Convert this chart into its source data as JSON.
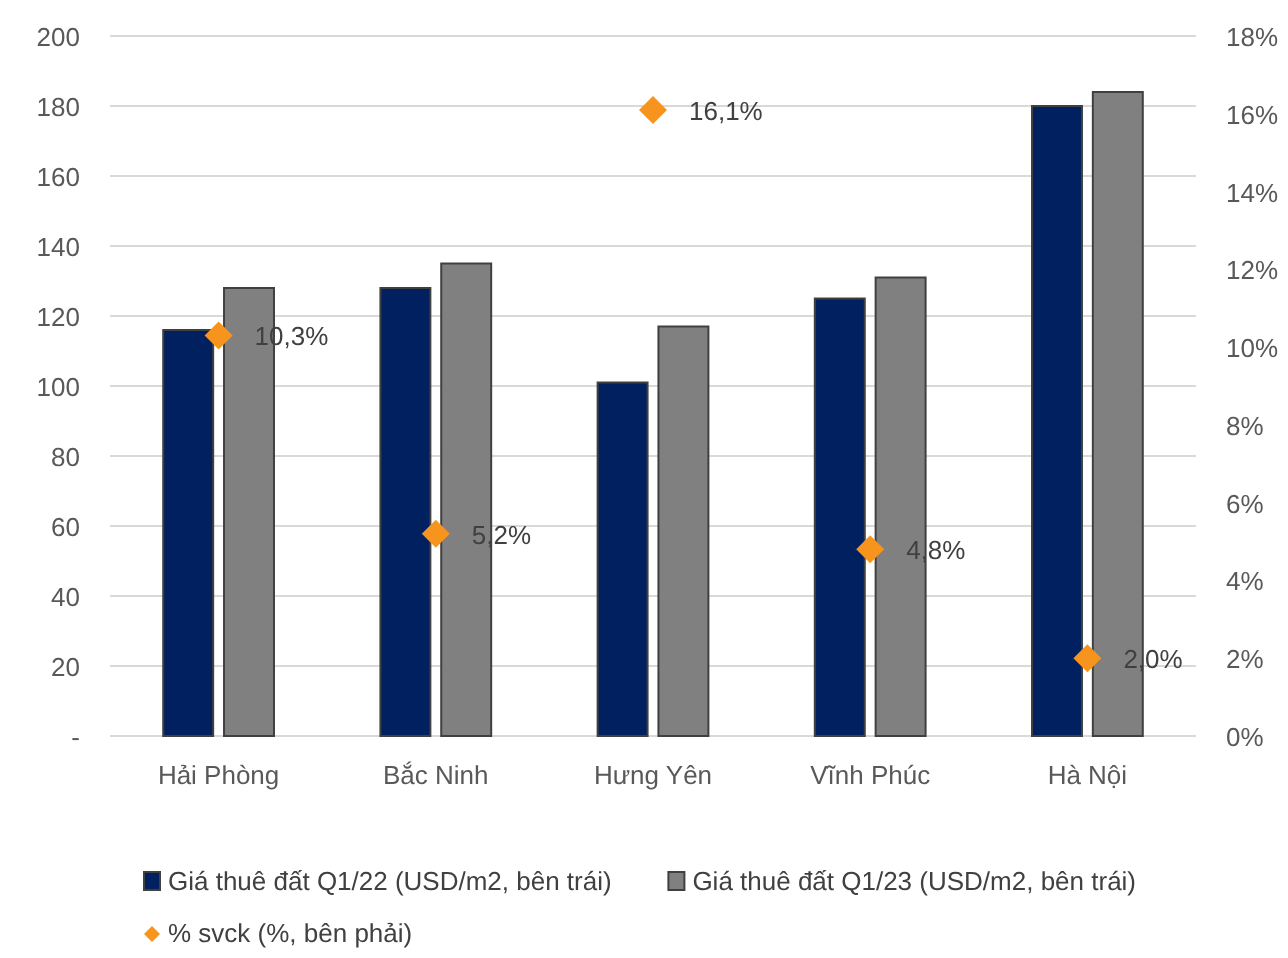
{
  "chart_data": {
    "type": "bar",
    "categories": [
      "Hải Phòng",
      "Bắc Ninh",
      "Hưng Yên",
      "Vĩnh Phúc",
      "Hà Nội"
    ],
    "series": [
      {
        "name": "Giá thuê đất Q1/22 (USD/m2, bên trái)",
        "color": "#002060",
        "values": [
          116,
          128,
          101,
          125,
          180
        ]
      },
      {
        "name": "Giá thuê đất Q1/23 (USD/m2, bên trái)",
        "color": "#808080",
        "values": [
          128,
          135,
          117,
          131,
          184
        ]
      },
      {
        "name": "% svck (%, bên phải)",
        "type": "scatter",
        "axis": "y2",
        "color": "#f7941d",
        "marker": "diamond",
        "values": [
          10.3,
          5.2,
          16.1,
          4.8,
          2.0
        ],
        "value_labels": [
          "10,3%",
          "5,2%",
          "16,1%",
          "4,8%",
          "2,0%"
        ]
      }
    ],
    "ylim": [
      0,
      200
    ],
    "yticks": [
      {
        "value": 0,
        "label": "-"
      },
      20,
      40,
      60,
      80,
      100,
      120,
      140,
      160,
      180,
      200
    ],
    "y2lim": [
      0,
      18
    ],
    "y2ticks": [
      {
        "value": 0,
        "label": "0%"
      },
      {
        "value": 2,
        "label": "2%"
      },
      {
        "value": 4,
        "label": "4%"
      },
      {
        "value": 6,
        "label": "6%"
      },
      {
        "value": 8,
        "label": "8%"
      },
      {
        "value": 10,
        "label": "10%"
      },
      {
        "value": 12,
        "label": "12%"
      },
      {
        "value": 14,
        "label": "14%"
      },
      {
        "value": 16,
        "label": "16%"
      },
      {
        "value": 18,
        "label": "18%"
      }
    ],
    "grid": "y",
    "legend": "bottom"
  }
}
